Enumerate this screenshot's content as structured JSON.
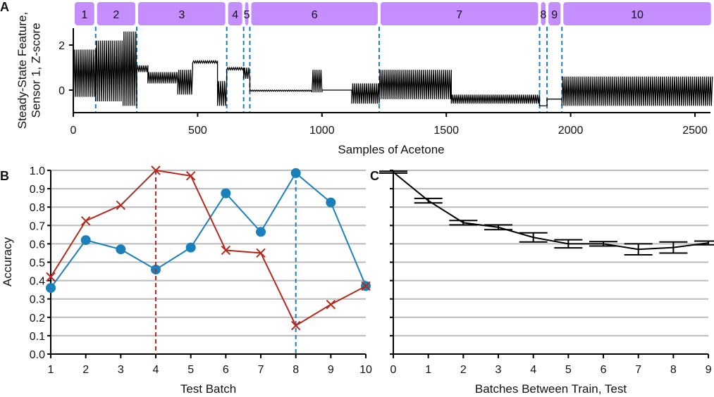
{
  "colors": {
    "batch_bar": "#c48ffc",
    "boundary": "#1a80bb",
    "blue": "#1a80bb",
    "red": "#b5291c",
    "line": "#000000"
  },
  "chart_data": [
    {
      "panel": "A",
      "type": "line",
      "ylabel": "Steady-State Feature, Sensor 1, Z-score",
      "xlabel": "Samples of Acetone",
      "xlim": [
        0,
        2570
      ],
      "ylim": [
        -0.9,
        2.8
      ],
      "xticks": [
        0,
        500,
        1000,
        1500,
        2000,
        2500
      ],
      "yticks": [
        0,
        2
      ],
      "batches": [
        "1",
        "2",
        "3",
        "4",
        "5",
        "6",
        "7",
        "8",
        "9",
        "10"
      ],
      "batch_boundaries": [
        90,
        255,
        617,
        685,
        710,
        1230,
        1875,
        1905,
        1965
      ],
      "envelope": [
        {
          "x": [
            0,
            90
          ],
          "min": -0.3,
          "max": 1.8
        },
        {
          "x": [
            90,
            200
          ],
          "min": -0.5,
          "max": 2.2
        },
        {
          "x": [
            200,
            255
          ],
          "min": -0.7,
          "max": 2.6
        },
        {
          "x": [
            255,
            300
          ],
          "min": 0.8,
          "max": 1.1
        },
        {
          "x": [
            300,
            420
          ],
          "min": 0.3,
          "max": 0.8
        },
        {
          "x": [
            420,
            480
          ],
          "min": -0.2,
          "max": 0.9
        },
        {
          "x": [
            480,
            580
          ],
          "min": 1.2,
          "max": 1.3
        },
        {
          "x": [
            580,
            617
          ],
          "min": -0.7,
          "max": 0.4
        },
        {
          "x": [
            617,
            685
          ],
          "min": 0.9,
          "max": 1.0
        },
        {
          "x": [
            685,
            710
          ],
          "min": 0.5,
          "max": 1.0
        },
        {
          "x": [
            710,
            960
          ],
          "min": -0.05,
          "max": 0.0
        },
        {
          "x": [
            960,
            1000
          ],
          "min": -0.1,
          "max": 0.9
        },
        {
          "x": [
            1000,
            1120
          ],
          "min": 0.0,
          "max": 0.0
        },
        {
          "x": [
            1120,
            1230
          ],
          "min": -0.6,
          "max": 0.3
        },
        {
          "x": [
            1230,
            1520
          ],
          "min": -0.4,
          "max": 0.9
        },
        {
          "x": [
            1520,
            1875
          ],
          "min": -0.6,
          "max": -0.2
        },
        {
          "x": [
            1875,
            1905
          ],
          "min": -0.7,
          "max": -0.7
        },
        {
          "x": [
            1905,
            1965
          ],
          "min": -0.4,
          "max": -0.4
        },
        {
          "x": [
            1965,
            2570
          ],
          "min": -0.7,
          "max": 0.6
        }
      ]
    },
    {
      "panel": "B",
      "type": "line",
      "xlabel": "Test Batch",
      "ylabel": "Accuracy",
      "xlim": [
        1,
        10
      ],
      "ylim": [
        0,
        1
      ],
      "grid": true,
      "x": [
        1,
        2,
        3,
        4,
        5,
        6,
        7,
        8,
        9,
        10
      ],
      "yticks": [
        "0.0",
        "0.1",
        "0.2",
        "0.3",
        "0.4",
        "0.5",
        "0.6",
        "0.7",
        "0.8",
        "0.9",
        "1.0"
      ],
      "series": [
        {
          "marker": "circle",
          "color": "#1a80bb",
          "values": [
            0.36,
            0.62,
            0.57,
            0.46,
            0.58,
            0.875,
            0.665,
            0.985,
            0.825,
            0.37
          ],
          "vline": 8
        },
        {
          "marker": "x",
          "color": "#b5291c",
          "values": [
            0.42,
            0.725,
            0.81,
            1.0,
            0.97,
            0.565,
            0.55,
            0.155,
            0.27,
            0.37
          ],
          "vline": 4
        }
      ]
    },
    {
      "panel": "C",
      "type": "line",
      "xlabel": "Batches Between Train, Test",
      "xlim": [
        0,
        9
      ],
      "ylim": [
        0,
        1
      ],
      "grid": true,
      "x": [
        0,
        1,
        2,
        3,
        4,
        5,
        6,
        7,
        8,
        9
      ],
      "values": [
        0.99,
        0.835,
        0.715,
        0.69,
        0.635,
        0.6,
        0.6,
        0.57,
        0.58,
        0.605
      ],
      "error": [
        0.005,
        0.012,
        0.012,
        0.013,
        0.025,
        0.022,
        0.012,
        0.03,
        0.03,
        0.01
      ]
    }
  ],
  "panel_labels": [
    "A",
    "B",
    "C"
  ]
}
